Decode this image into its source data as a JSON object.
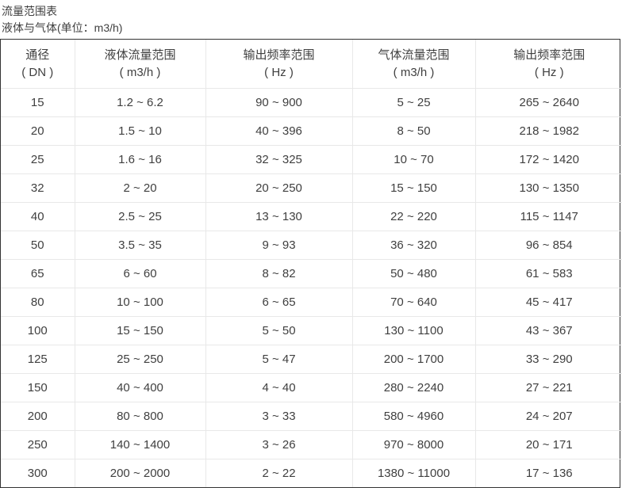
{
  "page": {
    "title": "流量范围表",
    "subtitle": "液体与气体(单位：m3/h)"
  },
  "colors": {
    "text": "#3f3f3f",
    "outer_border": "#333333",
    "inner_border": "#e8e8e8",
    "background": "#ffffff"
  },
  "table": {
    "columns": [
      {
        "line1": "通径",
        "line2": "( DN )"
      },
      {
        "line1": "液体流量范围",
        "line2": "( m3/h )"
      },
      {
        "line1": "输出频率范围",
        "line2": "( Hz )"
      },
      {
        "line1": "气体流量范围",
        "line2": "( m3/h )"
      },
      {
        "line1": "输出频率范围",
        "line2": "( Hz )"
      }
    ],
    "rows": [
      [
        "15",
        "1.2 ~ 6.2",
        "90 ~ 900",
        "5 ~ 25",
        "265 ~ 2640"
      ],
      [
        "20",
        "1.5 ~ 10",
        "40 ~ 396",
        "8 ~ 50",
        "218 ~ 1982"
      ],
      [
        "25",
        "1.6 ~ 16",
        "32 ~ 325",
        "10 ~ 70",
        "172 ~ 1420"
      ],
      [
        "32",
        "2 ~ 20",
        "20 ~ 250",
        "15 ~ 150",
        "130 ~ 1350"
      ],
      [
        "40",
        "2.5 ~ 25",
        "13 ~ 130",
        "22 ~ 220",
        "115 ~ 1147"
      ],
      [
        "50",
        "3.5 ~ 35",
        "9 ~ 93",
        "36 ~ 320",
        "96 ~ 854"
      ],
      [
        "65",
        "6 ~ 60",
        "8 ~ 82",
        "50 ~ 480",
        "61 ~ 583"
      ],
      [
        "80",
        "10 ~ 100",
        "6 ~ 65",
        "70 ~ 640",
        "45 ~ 417"
      ],
      [
        "100",
        "15 ~ 150",
        "5 ~ 50",
        "130 ~ 1100",
        "43 ~ 367"
      ],
      [
        "125",
        "25 ~ 250",
        "5 ~ 47",
        "200 ~ 1700",
        "33 ~ 290"
      ],
      [
        "150",
        "40 ~ 400",
        "4 ~ 40",
        "280 ~ 2240",
        "27 ~ 221"
      ],
      [
        "200",
        "80 ~ 800",
        "3 ~ 33",
        "580 ~ 4960",
        "24 ~ 207"
      ],
      [
        "250",
        "140 ~ 1400",
        "3 ~ 26",
        "970 ~ 8000",
        "20 ~ 171"
      ],
      [
        "300",
        "200 ~ 2000",
        "2 ~ 22",
        "1380 ~ 11000",
        "17 ~ 136"
      ]
    ]
  }
}
